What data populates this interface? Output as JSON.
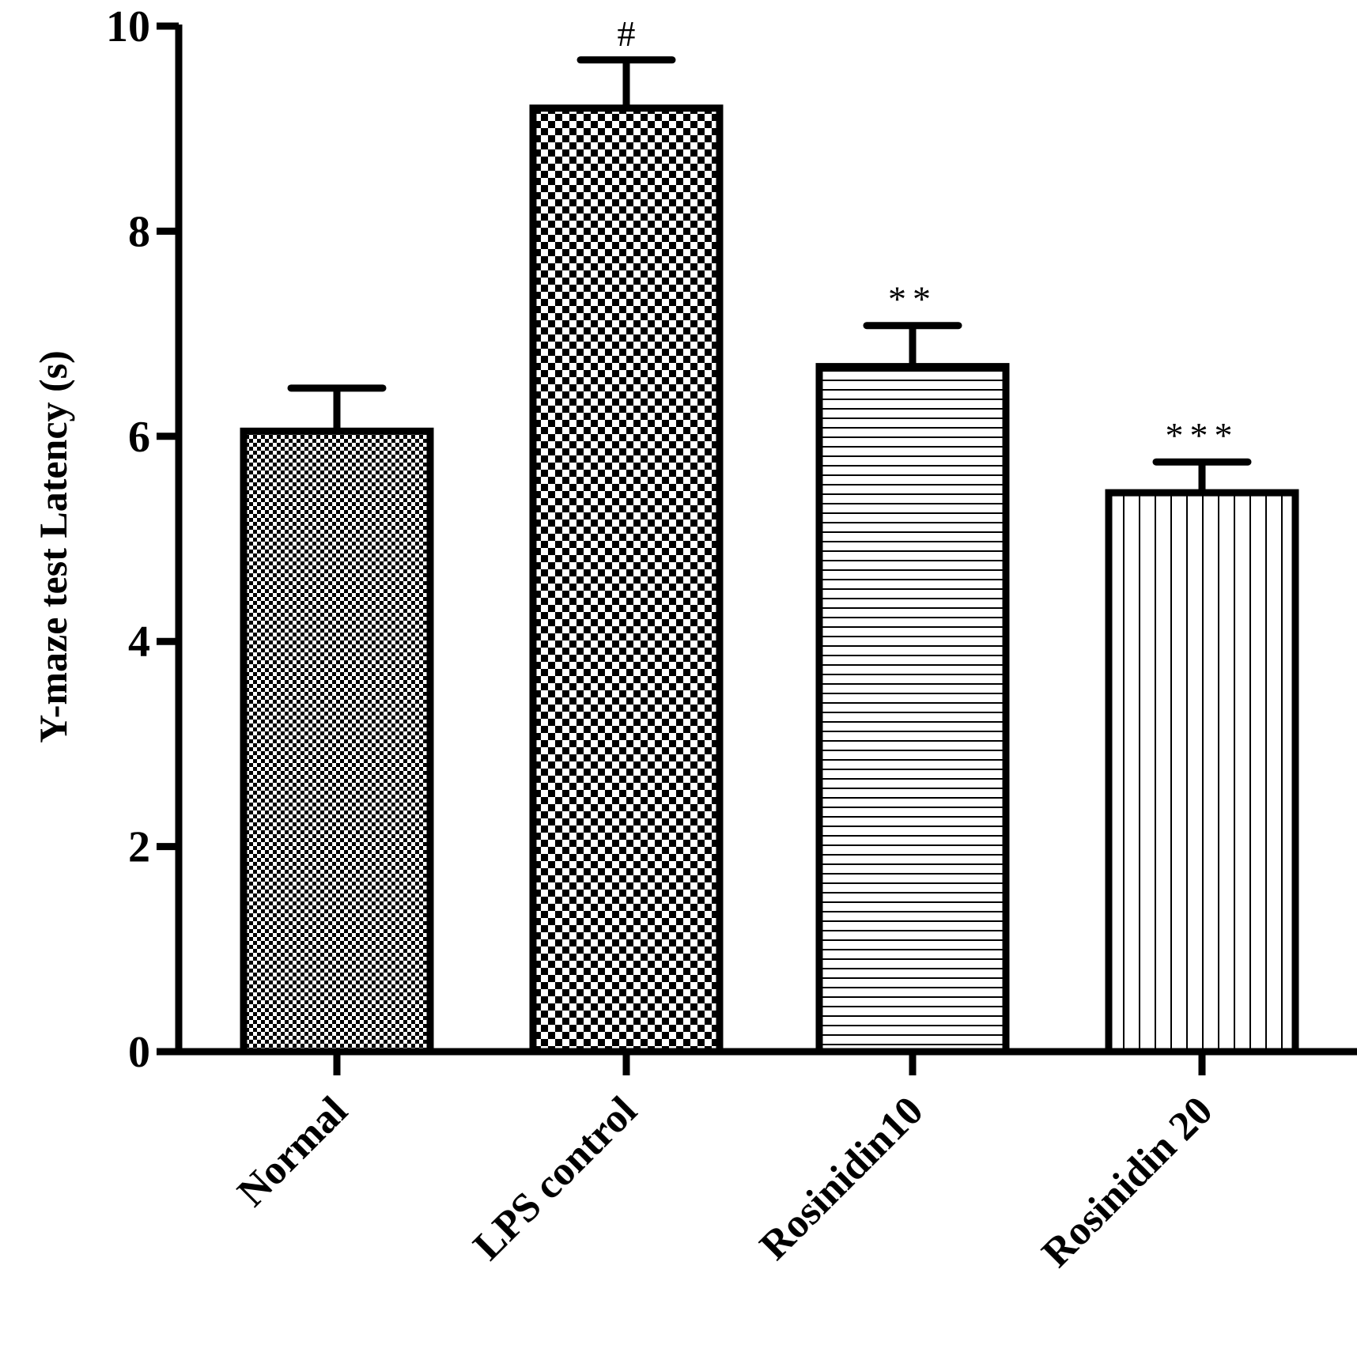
{
  "chart_data": {
    "type": "bar",
    "title": "",
    "xlabel": "",
    "ylabel": "Y-maze test Latency (s)",
    "ylim": [
      0,
      10
    ],
    "yticks": [
      0,
      2,
      4,
      6,
      8,
      10
    ],
    "categories": [
      "Normal",
      "LPS control",
      "Rosinidin10",
      "Rosinidin 20"
    ],
    "values": [
      6.05,
      9.2,
      6.68,
      5.45
    ],
    "errors": [
      0.42,
      0.47,
      0.4,
      0.3
    ],
    "significance": [
      "",
      "#",
      "**",
      "***"
    ],
    "patterns": [
      "fine-checker",
      "coarse-checker",
      "horizontal-lines",
      "vertical-lines"
    ],
    "grid": false,
    "legend": "none"
  }
}
